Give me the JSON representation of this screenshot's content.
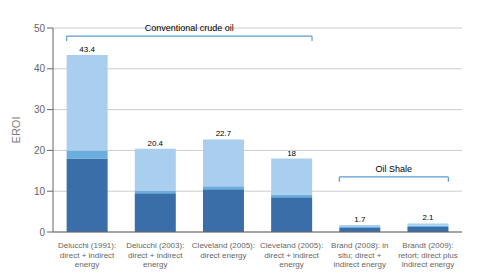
{
  "chart_data": {
    "type": "bar",
    "stacked": true,
    "categories": [
      "Delucchi (1991):\ndirect + indirect\nenergy",
      "Delucchi (2003):\ndirect + indirect\nenergy",
      "Cleveland (2005):\ndirect energy",
      "Cleveland (2005):\ndirect + indirect\nenergy",
      "Brand (2008): in\nsitu; direct +\nindirect energy",
      "Brandt (2009):\nretort; direct plus\nindirect energy"
    ],
    "series": [
      {
        "color": "#3a6ea8",
        "values": [
          18.0,
          9.5,
          10.5,
          8.5,
          1.0,
          1.2
        ]
      },
      {
        "color": "#6aaee0",
        "values": [
          2.0,
          0.7,
          0.7,
          0.7,
          0.25,
          0.35
        ]
      },
      {
        "color": "#aacfee",
        "values": [
          23.4,
          10.2,
          11.5,
          8.8,
          0.45,
          0.55
        ]
      }
    ],
    "totals": [
      43.4,
      20.4,
      22.7,
      18,
      1.7,
      2.1
    ],
    "ylabel": "EROI",
    "ylim": [
      0,
      50
    ],
    "yticks": [
      0,
      10,
      20,
      30,
      40,
      50
    ],
    "grid": true,
    "annotations": [
      {
        "text": "Conventional crude oil",
        "first": 0,
        "last": 3,
        "y": 48,
        "color": "#5b9bd5"
      },
      {
        "text": "Oil Shale",
        "first": 4,
        "last": 5,
        "y": 13.5,
        "color": "#5b9bd5"
      }
    ]
  }
}
